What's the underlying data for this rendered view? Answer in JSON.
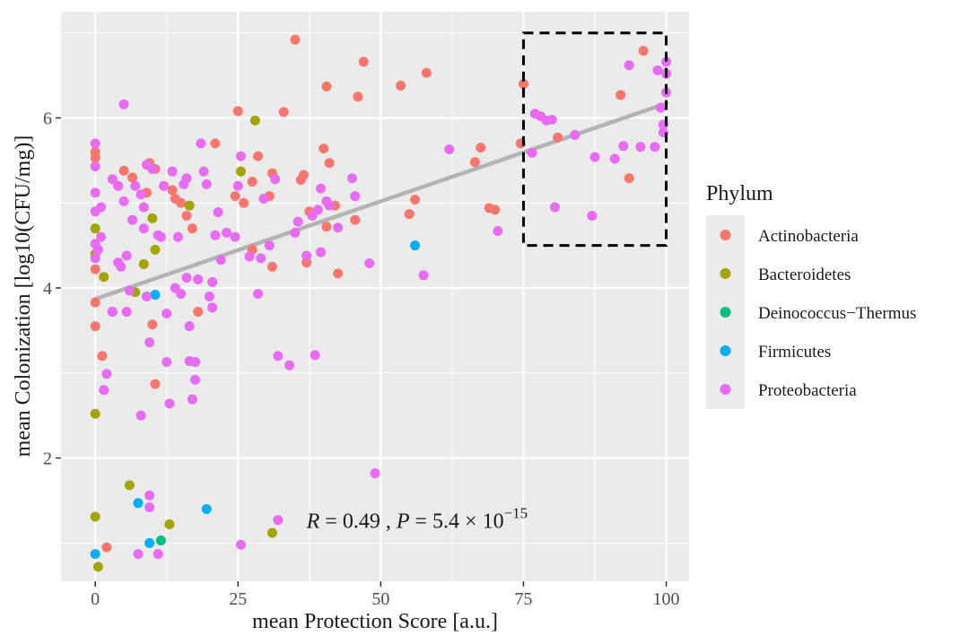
{
  "chart_data": {
    "type": "scatter",
    "xlabel": "mean Protection Score [a.u.]",
    "ylabel": "mean Colonization [log10(CFU/mg)]",
    "xlim": [
      -6,
      104
    ],
    "ylim": [
      0.55,
      7.25
    ],
    "x_ticks": [
      0,
      25,
      50,
      75,
      100
    ],
    "x_tick_labels": [
      "0",
      "25",
      "50",
      "75",
      "100"
    ],
    "y_ticks": [
      2,
      4,
      6
    ],
    "y_tick_labels": [
      "2",
      "4",
      "6"
    ],
    "legend": {
      "title": "Phylum",
      "placement": "right",
      "entries": [
        {
          "name": "Actinobacteria",
          "color": "#f8766d"
        },
        {
          "name": "Bacteroidetes",
          "color": "#a3a500"
        },
        {
          "name": "Deinococcus−Thermus",
          "color": "#00bf7d"
        },
        {
          "name": "Firmicutes",
          "color": "#00b0f6"
        },
        {
          "name": "Proteobacteria",
          "color": "#e76bf3"
        }
      ]
    },
    "regression": {
      "x": [
        0,
        100
      ],
      "y": [
        3.87,
        6.17
      ],
      "color": "#b3b3b3"
    },
    "highlight_box": {
      "x": [
        75,
        100
      ],
      "y": [
        4.5,
        7.0
      ]
    },
    "annotation": {
      "r_symbol": "R",
      "r_text": " = 0.49 , ",
      "p_symbol": "P",
      "p_text": " = 5.4 × 10",
      "p_exponent": "−15",
      "x": 37,
      "y": 1.18
    },
    "series": [
      {
        "name": "Actinobacteria",
        "points": [
          [
            0,
            5.6
          ],
          [
            0,
            5.53
          ],
          [
            0,
            4.22
          ],
          [
            0,
            3.83
          ],
          [
            0,
            3.55
          ],
          [
            1.2,
            3.2
          ],
          [
            2,
            0.95
          ],
          [
            5,
            5.38
          ],
          [
            6.5,
            5.3
          ],
          [
            9,
            5.12
          ],
          [
            9.5,
            5.47
          ],
          [
            10,
            3.57
          ],
          [
            10.5,
            2.87
          ],
          [
            10.5,
            5.4
          ],
          [
            13.5,
            5.15
          ],
          [
            14,
            5.05
          ],
          [
            15,
            5.0
          ],
          [
            16,
            4.85
          ],
          [
            17,
            4.7
          ],
          [
            18,
            3.72
          ],
          [
            21,
            5.7
          ],
          [
            24.5,
            5.08
          ],
          [
            25,
            6.08
          ],
          [
            26,
            5.0
          ],
          [
            27.5,
            5.25
          ],
          [
            27.5,
            4.45
          ],
          [
            28.5,
            5.55
          ],
          [
            30.5,
            5.08
          ],
          [
            31,
            5.35
          ],
          [
            31,
            4.25
          ],
          [
            33,
            6.07
          ],
          [
            35,
            6.92
          ],
          [
            36,
            5.27
          ],
          [
            36.5,
            5.33
          ],
          [
            37,
            4.3
          ],
          [
            37.5,
            4.9
          ],
          [
            40,
            5.64
          ],
          [
            40.5,
            6.37
          ],
          [
            40.5,
            4.72
          ],
          [
            41,
            5.47
          ],
          [
            42,
            4.97
          ],
          [
            42.5,
            4.17
          ],
          [
            45.5,
            4.8
          ],
          [
            46,
            6.25
          ],
          [
            47,
            6.66
          ],
          [
            53.5,
            6.38
          ],
          [
            55,
            4.87
          ],
          [
            56,
            5.04
          ],
          [
            58,
            6.53
          ],
          [
            66.5,
            5.48
          ],
          [
            67.5,
            5.65
          ],
          [
            69,
            4.94
          ],
          [
            70,
            4.92
          ],
          [
            74.5,
            5.7
          ],
          [
            75,
            6.4
          ],
          [
            81,
            5.77
          ],
          [
            92,
            6.27
          ],
          [
            93.5,
            5.29
          ],
          [
            96,
            6.79
          ]
        ]
      },
      {
        "name": "Bacteroidetes",
        "points": [
          [
            0,
            4.7
          ],
          [
            0,
            4.4
          ],
          [
            0,
            2.52
          ],
          [
            0,
            1.31
          ],
          [
            0.5,
            0.72
          ],
          [
            1.5,
            4.13
          ],
          [
            6,
            1.68
          ],
          [
            7,
            3.95
          ],
          [
            8.5,
            4.28
          ],
          [
            10,
            4.82
          ],
          [
            10.5,
            4.45
          ],
          [
            13,
            1.22
          ],
          [
            16.5,
            4.97
          ],
          [
            25.5,
            5.37
          ],
          [
            28,
            5.97
          ],
          [
            31,
            1.12
          ]
        ]
      },
      {
        "name": "Deinococcus−Thermus",
        "points": [
          [
            11.5,
            1.03
          ]
        ]
      },
      {
        "name": "Firmicutes",
        "points": [
          [
            0,
            0.87
          ],
          [
            3,
            3.72
          ],
          [
            7.5,
            1.47
          ],
          [
            9.5,
            1.0
          ],
          [
            10.5,
            3.92
          ],
          [
            19.5,
            1.4
          ],
          [
            56,
            4.5
          ]
        ]
      },
      {
        "name": "Proteobacteria",
        "points": [
          [
            0,
            5.7
          ],
          [
            0,
            5.43
          ],
          [
            0,
            5.12
          ],
          [
            0,
            4.9
          ],
          [
            0,
            4.52
          ],
          [
            0,
            4.35
          ],
          [
            0.5,
            4.45
          ],
          [
            1,
            4.95
          ],
          [
            1,
            4.6
          ],
          [
            1.5,
            2.8
          ],
          [
            2,
            2.99
          ],
          [
            3,
            3.72
          ],
          [
            3,
            5.28
          ],
          [
            4,
            5.2
          ],
          [
            4,
            4.3
          ],
          [
            4.5,
            4.25
          ],
          [
            5,
            5.02
          ],
          [
            5,
            6.16
          ],
          [
            5.5,
            4.38
          ],
          [
            5.5,
            3.72
          ],
          [
            6,
            3.97
          ],
          [
            6.5,
            4.8
          ],
          [
            7,
            5.2
          ],
          [
            7.5,
            0.87
          ],
          [
            8,
            2.5
          ],
          [
            8,
            5.1
          ],
          [
            8.5,
            4.7
          ],
          [
            8.5,
            4.95
          ],
          [
            9,
            3.9
          ],
          [
            9,
            5.45
          ],
          [
            9.5,
            1.42
          ],
          [
            9.5,
            1.56
          ],
          [
            9.5,
            3.36
          ],
          [
            10,
            5.4
          ],
          [
            11,
            4.62
          ],
          [
            11,
            0.87
          ],
          [
            11.5,
            4.6
          ],
          [
            12,
            5.2
          ],
          [
            12.5,
            3.7
          ],
          [
            12.5,
            3.13
          ],
          [
            13,
            2.64
          ],
          [
            13.5,
            5.37
          ],
          [
            14,
            4.0
          ],
          [
            14.5,
            4.6
          ],
          [
            15,
            3.93
          ],
          [
            15.5,
            5.22
          ],
          [
            16,
            5.29
          ],
          [
            16,
            4.12
          ],
          [
            16.5,
            3.55
          ],
          [
            16.5,
            3.14
          ],
          [
            17,
            2.69
          ],
          [
            17.5,
            3.13
          ],
          [
            17.5,
            2.92
          ],
          [
            18,
            4.1
          ],
          [
            18.5,
            5.7
          ],
          [
            19,
            5.37
          ],
          [
            19.5,
            5.22
          ],
          [
            20,
            3.9
          ],
          [
            20.5,
            4.07
          ],
          [
            20.5,
            3.77
          ],
          [
            21,
            4.62
          ],
          [
            21.5,
            4.89
          ],
          [
            22,
            4.33
          ],
          [
            23,
            4.65
          ],
          [
            24.5,
            4.6
          ],
          [
            25,
            5.2
          ],
          [
            25.5,
            5.55
          ],
          [
            25.5,
            0.98
          ],
          [
            27,
            4.37
          ],
          [
            28.5,
            3.93
          ],
          [
            29,
            4.35
          ],
          [
            29.5,
            5.05
          ],
          [
            30.5,
            4.5
          ],
          [
            31.5,
            5.28
          ],
          [
            32,
            3.2
          ],
          [
            32,
            1.27
          ],
          [
            34,
            3.09
          ],
          [
            35,
            4.65
          ],
          [
            35.5,
            4.78
          ],
          [
            37,
            4.38
          ],
          [
            38,
            4.85
          ],
          [
            38.5,
            3.21
          ],
          [
            39,
            4.92
          ],
          [
            39.5,
            5.17
          ],
          [
            39.5,
            4.42
          ],
          [
            40.5,
            5.02
          ],
          [
            41,
            4.97
          ],
          [
            42.5,
            4.71
          ],
          [
            45,
            5.29
          ],
          [
            45.5,
            5.08
          ],
          [
            48,
            4.29
          ],
          [
            49,
            1.82
          ],
          [
            57.5,
            4.15
          ],
          [
            62,
            5.63
          ],
          [
            70.5,
            4.67
          ],
          [
            76.5,
            5.59
          ],
          [
            77,
            6.05
          ],
          [
            78,
            6.02
          ],
          [
            79,
            5.97
          ],
          [
            80,
            5.98
          ],
          [
            80.5,
            4.95
          ],
          [
            84,
            5.8
          ],
          [
            87,
            4.85
          ],
          [
            87.5,
            5.54
          ],
          [
            91,
            5.52
          ],
          [
            92.5,
            5.67
          ],
          [
            93.5,
            6.62
          ],
          [
            95.5,
            5.66
          ],
          [
            98,
            5.66
          ],
          [
            98.5,
            6.56
          ],
          [
            99,
            6.12
          ],
          [
            99.5,
            5.83
          ],
          [
            99.5,
            5.92
          ],
          [
            100,
            6.3
          ],
          [
            100,
            6.52
          ],
          [
            100,
            6.66
          ]
        ]
      }
    ]
  }
}
